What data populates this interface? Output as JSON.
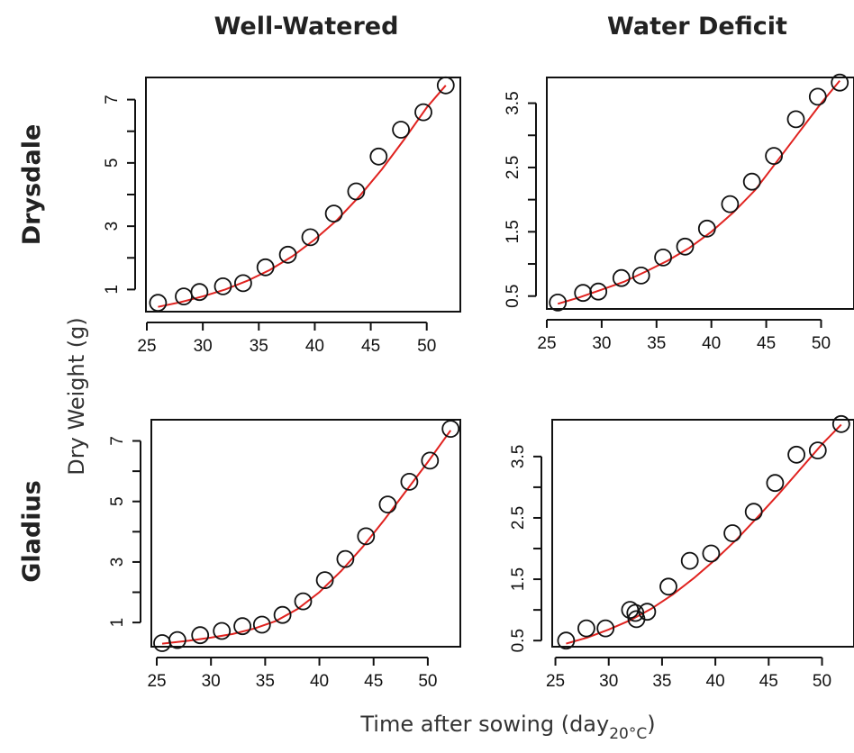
{
  "figure": {
    "col_titles": [
      "Well-Watered",
      "Water Deficit"
    ],
    "row_titles": [
      "Drysdale",
      "Gladius"
    ],
    "ylabel": "Dry Weight (g)",
    "xlabel_main": "Time after sowing (day",
    "xlabel_sub": "20°C",
    "xlabel_close": ")"
  },
  "chart_data": [
    {
      "type": "scatter",
      "panel": "Drysdale / Well-Watered",
      "xlim": [
        25,
        53
      ],
      "ylim": [
        0.3,
        7.7
      ],
      "xticks": [
        25,
        30,
        35,
        40,
        45,
        50
      ],
      "yticks": [
        1,
        2,
        3,
        4,
        5,
        6,
        7
      ],
      "ytick_labels": [
        1,
        3,
        5,
        7
      ],
      "x": [
        26,
        28.3,
        29.7,
        31.8,
        33.6,
        35.6,
        37.6,
        39.6,
        41.7,
        43.7,
        45.7,
        47.7,
        49.7,
        51.7
      ],
      "y": [
        0.58,
        0.78,
        0.92,
        1.1,
        1.2,
        1.7,
        2.1,
        2.65,
        3.4,
        4.1,
        5.2,
        6.05,
        6.6,
        7.45
      ],
      "fit_x": [
        26,
        28,
        30,
        32,
        34,
        36,
        38,
        40,
        42,
        44,
        46,
        48,
        50,
        51.7
      ],
      "fit_y": [
        0.45,
        0.6,
        0.78,
        1.0,
        1.28,
        1.62,
        2.05,
        2.58,
        3.2,
        3.95,
        4.8,
        5.75,
        6.75,
        7.45
      ]
    },
    {
      "type": "scatter",
      "panel": "Drysdale / Water Deficit",
      "xlim": [
        25,
        53
      ],
      "ylim": [
        0.3,
        3.9
      ],
      "xticks": [
        25,
        30,
        35,
        40,
        45,
        50
      ],
      "yticks": [
        0.5,
        1,
        1.5,
        2,
        2.5,
        3,
        3.5
      ],
      "ytick_labels": [
        0.5,
        1.5,
        2.5,
        3.5
      ],
      "x": [
        26,
        28.3,
        29.7,
        31.8,
        33.6,
        35.6,
        37.6,
        39.6,
        41.7,
        43.7,
        45.7,
        47.7,
        49.7,
        51.7
      ],
      "y": [
        0.4,
        0.55,
        0.57,
        0.78,
        0.82,
        1.1,
        1.27,
        1.55,
        1.93,
        2.28,
        2.68,
        3.25,
        3.6,
        3.82
      ],
      "fit_x": [
        26,
        28,
        30,
        32,
        34,
        36,
        38,
        40,
        42,
        44,
        46,
        48,
        50,
        51.7
      ],
      "fit_y": [
        0.38,
        0.48,
        0.6,
        0.72,
        0.88,
        1.05,
        1.25,
        1.5,
        1.8,
        2.15,
        2.6,
        3.05,
        3.5,
        3.85
      ]
    },
    {
      "type": "scatter",
      "panel": "Gladius / Well-Watered",
      "xlim": [
        24.5,
        53
      ],
      "ylim": [
        0.2,
        7.7
      ],
      "xticks": [
        25,
        30,
        35,
        40,
        45,
        50
      ],
      "yticks": [
        1,
        2,
        3,
        4,
        5,
        6,
        7
      ],
      "ytick_labels": [
        1,
        3,
        5,
        7
      ],
      "x": [
        25.5,
        26.9,
        29,
        31,
        32.9,
        34.7,
        36.6,
        38.5,
        40.5,
        42.4,
        44.3,
        46.3,
        48.3,
        50.2,
        52.1
      ],
      "y": [
        0.32,
        0.42,
        0.58,
        0.72,
        0.88,
        0.93,
        1.25,
        1.7,
        2.4,
        3.1,
        3.85,
        4.9,
        5.65,
        6.35,
        7.4
      ],
      "fit_x": [
        25.5,
        28,
        30,
        32,
        34,
        36,
        38,
        40,
        42,
        44,
        46,
        48,
        50,
        52.1
      ],
      "fit_y": [
        0.3,
        0.4,
        0.5,
        0.62,
        0.8,
        1.05,
        1.45,
        2.0,
        2.7,
        3.5,
        4.4,
        5.35,
        6.3,
        7.35
      ]
    },
    {
      "type": "scatter",
      "panel": "Gladius / Water Deficit",
      "xlim": [
        24.7,
        53
      ],
      "ylim": [
        0.4,
        4.1
      ],
      "xticks": [
        25,
        30,
        35,
        40,
        45,
        50
      ],
      "yticks": [
        0.5,
        1,
        1.5,
        2,
        2.5,
        3,
        3.5
      ],
      "ytick_labels": [
        0.5,
        1.5,
        2.5,
        3.5
      ],
      "x": [
        26,
        27.9,
        29.7,
        32,
        32.5,
        32.6,
        33.6,
        35.6,
        37.6,
        39.6,
        41.6,
        43.6,
        45.6,
        47.6,
        49.6,
        51.8
      ],
      "y": [
        0.5,
        0.7,
        0.7,
        1.0,
        0.95,
        0.85,
        0.97,
        1.38,
        1.8,
        1.92,
        2.25,
        2.6,
        3.07,
        3.53,
        3.6,
        4.03
      ],
      "fit_x": [
        26,
        28,
        30,
        32,
        34,
        36,
        38,
        40,
        42,
        44,
        46,
        48,
        50,
        51.8
      ],
      "fit_y": [
        0.45,
        0.55,
        0.68,
        0.83,
        1.02,
        1.25,
        1.52,
        1.82,
        2.15,
        2.52,
        2.9,
        3.3,
        3.7,
        4.02
      ]
    }
  ]
}
